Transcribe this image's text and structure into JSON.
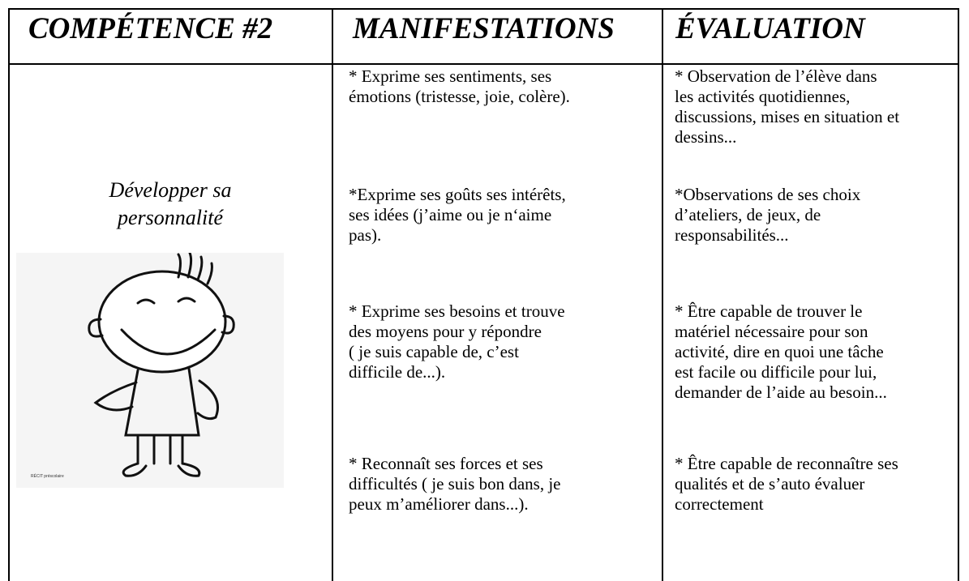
{
  "header": {
    "columns": [
      "COMPÉTENCE #2",
      "MANIFESTATIONS",
      "ÉVALUATION"
    ]
  },
  "competence": {
    "title": "Développer sa personnalité",
    "image_caption": "RÉCIT préscolaire"
  },
  "rows": [
    {
      "manifestation": [
        "* Exprime ses sentiments, ses",
        "émotions (tristesse, joie, colère)."
      ],
      "evaluation": [
        "* Observation de l’élève dans",
        "les activités quotidiennes,",
        "discussions, mises en situation et",
        "dessins..."
      ]
    },
    {
      "manifestation": [
        "*Exprime ses goûts ses intérêts,",
        "ses idées (j’aime ou je n‘aime",
        "pas)."
      ],
      "evaluation": [
        "*Observations de ses choix",
        "d’ateliers, de jeux, de",
        "responsabilités..."
      ]
    },
    {
      "manifestation": [
        "* Exprime ses besoins et trouve",
        "des moyens pour y répondre",
        "( je suis capable de, c’est",
        "difficile de...)."
      ],
      "evaluation": [
        "* Être capable de trouver le",
        "matériel nécessaire pour son",
        "activité, dire en quoi une tâche",
        "est facile ou difficile pour lui,",
        "demander de l’aide au besoin..."
      ]
    },
    {
      "manifestation": [
        "* Reconnaît ses forces et ses",
        "difficultés ( je suis bon dans, je",
        "peux m’améliorer dans...)."
      ],
      "evaluation": [
        "* Être capable de reconnaître ses",
        "qualités et de s’auto évaluer",
        "correctement"
      ]
    }
  ]
}
